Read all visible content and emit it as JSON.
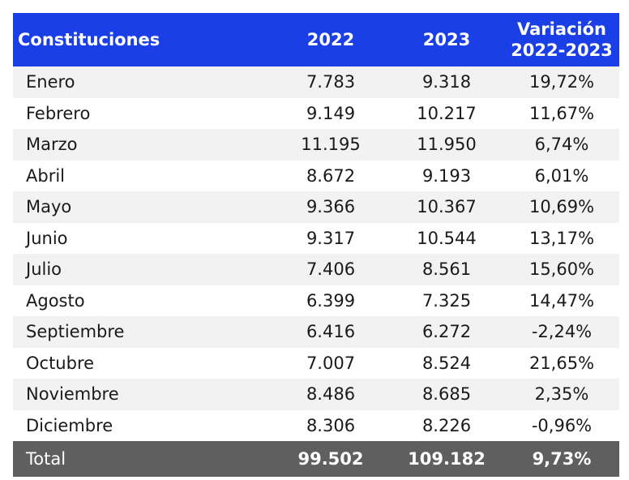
{
  "table": {
    "headers": {
      "label": "Constituciones",
      "y2022": "2022",
      "y2023": "2023",
      "variation_line1": "Variación",
      "variation_line2": "2022-2023"
    },
    "rows": [
      {
        "month": "Enero",
        "y2022": "7.783",
        "y2023": "9.318",
        "variation": "19,72%"
      },
      {
        "month": "Febrero",
        "y2022": "9.149",
        "y2023": "10.217",
        "variation": "11,67%"
      },
      {
        "month": "Marzo",
        "y2022": "11.195",
        "y2023": "11.950",
        "variation": "6,74%"
      },
      {
        "month": "Abril",
        "y2022": "8.672",
        "y2023": "9.193",
        "variation": "6,01%"
      },
      {
        "month": "Mayo",
        "y2022": "9.366",
        "y2023": "10.367",
        "variation": "10,69%"
      },
      {
        "month": "Junio",
        "y2022": "9.317",
        "y2023": "10.544",
        "variation": "13,17%"
      },
      {
        "month": "Julio",
        "y2022": "7.406",
        "y2023": "8.561",
        "variation": "15,60%"
      },
      {
        "month": "Agosto",
        "y2022": "6.399",
        "y2023": "7.325",
        "variation": "14,47%"
      },
      {
        "month": "Septiembre",
        "y2022": "6.416",
        "y2023": "6.272",
        "variation": "-2,24%"
      },
      {
        "month": "Octubre",
        "y2022": "7.007",
        "y2023": "8.524",
        "variation": "21,65%"
      },
      {
        "month": "Noviembre",
        "y2022": "8.486",
        "y2023": "8.685",
        "variation": "2,35%"
      },
      {
        "month": "Diciembre",
        "y2022": "8.306",
        "y2023": "8.226",
        "variation": "-0,96%"
      }
    ],
    "total": {
      "label": "Total",
      "y2022": "99.502",
      "y2023": "109.182",
      "variation": "9,73%"
    },
    "colors": {
      "header_bg": "#1a3fe6",
      "row_shade": "#f2f2f2",
      "total_bg": "#5f5f5f"
    }
  }
}
